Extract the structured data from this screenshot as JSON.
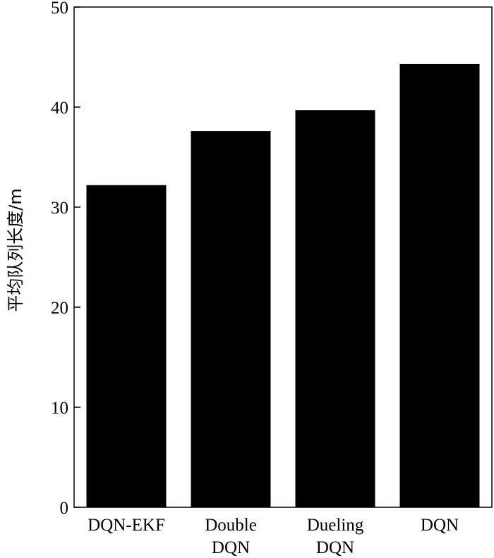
{
  "chart_data": {
    "type": "bar",
    "categories": [
      [
        "DQN-EKF"
      ],
      [
        "Double",
        "DQN"
      ],
      [
        "Dueling",
        "DQN"
      ],
      [
        "DQN"
      ]
    ],
    "values": [
      32.2,
      37.6,
      39.7,
      44.3
    ],
    "ylabel": "平均队列长度/m",
    "ylim": [
      0,
      50
    ],
    "yticks": [
      0,
      10,
      20,
      30,
      40,
      50
    ],
    "grid": false,
    "legend": "none",
    "bar_color": "#000000"
  }
}
